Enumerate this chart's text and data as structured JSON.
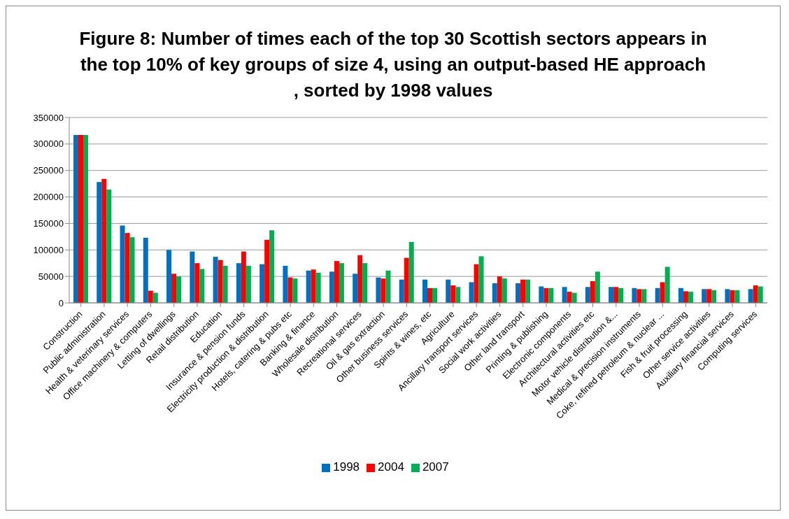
{
  "chart_data": {
    "type": "bar",
    "title": "Figure 8: Number of times each of the top 30 Scottish sectors appears in the top 10% of key groups of size 4, using an output-based HE approach , sorted by 1998 values",
    "categories": [
      "Construction",
      "Public administration",
      "Health & veterinary services",
      "Office machinery & computers",
      "Letting of dwellings",
      "Retail distribution",
      "Education",
      "Insurance & pension funds",
      "Electricity production & distribution",
      "Hotels, catering & pubs etc",
      "Banking & finance",
      "Wholesale distribution",
      "Recreational services",
      "Oil & gas extraction",
      "Other business services",
      "Spirits & wines, etc",
      "Agriculture",
      "Ancillary transport services",
      "Social work activities",
      "Other land transport",
      "Printing & publishing",
      "Electronic components",
      "Architectural activities etc",
      "Motor vehicle distribution &...",
      "Medical & precision instruments",
      "Coke, refined petroleum & nuclear ...",
      "Fish & fruit processing",
      "Other service activities",
      "Auxiliary financial services",
      "Computing services"
    ],
    "series": [
      {
        "name": "1998",
        "color": "#0070c0",
        "values": [
          317000,
          228000,
          146000,
          123000,
          100000,
          97000,
          87000,
          75000,
          73000,
          70000,
          61000,
          59000,
          55000,
          48000,
          44000,
          44000,
          44000,
          39000,
          37000,
          37000,
          31000,
          30000,
          30000,
          30000,
          28000,
          28000,
          28000,
          26000,
          26000,
          26000
        ]
      },
      {
        "name": "2004",
        "color": "#ff0000",
        "values": [
          317000,
          234000,
          132000,
          23000,
          55000,
          75000,
          81000,
          97000,
          119000,
          48000,
          63000,
          79000,
          90000,
          46000,
          85000,
          28000,
          33000,
          73000,
          50000,
          44000,
          28000,
          21000,
          41000,
          30000,
          26000,
          39000,
          22000,
          26000,
          24000,
          33000
        ]
      },
      {
        "name": "2007",
        "color": "#00b050",
        "values": [
          317000,
          214000,
          124000,
          19000,
          50000,
          64000,
          70000,
          70000,
          137000,
          46000,
          57000,
          75000,
          75000,
          61000,
          115000,
          28000,
          30000,
          88000,
          46000,
          44000,
          28000,
          19000,
          59000,
          28000,
          26000,
          68000,
          21000,
          24000,
          24000,
          31000
        ]
      }
    ],
    "ylim": [
      0,
      350000
    ],
    "yticks": [
      0,
      50000,
      100000,
      150000,
      200000,
      250000,
      300000,
      350000
    ],
    "grid": "y",
    "legend": "bottom"
  }
}
